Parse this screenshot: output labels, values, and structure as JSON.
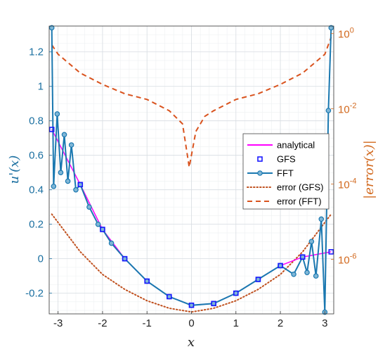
{
  "chart_data": {
    "type": "line",
    "xlabel": "x",
    "ylabel_left": "u'(x)",
    "ylabel_right": "|error(x)|",
    "xlim": [
      -3.2,
      3.2
    ],
    "ylim_left": [
      -0.32,
      1.35
    ],
    "ylim_right_log10": [
      -7.45,
      0.2
    ],
    "x_ticks": [
      -3,
      -2,
      -1,
      0,
      1,
      2,
      3
    ],
    "x_tick_labels": [
      "-3",
      "-2",
      "-1",
      "0",
      "1",
      "2",
      "3"
    ],
    "y_left_ticks": [
      -0.2,
      0,
      0.2,
      0.4,
      0.6,
      0.8,
      1,
      1.2
    ],
    "y_left_tick_labels": [
      "-0.2",
      "0",
      "0.2",
      "0.4",
      "0.6",
      "0.8",
      "1",
      "1.2"
    ],
    "y_right_ticks_log10": [
      -6,
      -4,
      -2,
      0
    ],
    "y_right_tick_labels": [
      "10",
      "10",
      "10",
      "10"
    ],
    "y_right_tick_exponents": [
      "-6",
      "-4",
      "-2",
      "0"
    ],
    "grid": true,
    "legend_position": "center-right",
    "series": [
      {
        "name": "analytical",
        "axis": "left",
        "color": "#ff00ff",
        "style": "solid-line",
        "x": [
          -3.1416,
          -2.5,
          -2.0,
          -1.5,
          -1.0,
          -0.5,
          0.0,
          0.5,
          1.0,
          1.5,
          2.0,
          2.5,
          3.1416
        ],
        "y": [
          0.75,
          0.43,
          0.17,
          0.0,
          -0.13,
          -0.22,
          -0.27,
          -0.26,
          -0.2,
          -0.12,
          -0.04,
          0.01,
          0.04
        ]
      },
      {
        "name": "GFS",
        "axis": "left",
        "color": "#1a1aff",
        "style": "square-markers",
        "x": [
          -3.1416,
          -2.5,
          -2.0,
          -1.5,
          -1.0,
          -0.5,
          0.0,
          0.5,
          1.0,
          1.5,
          2.0,
          2.5,
          3.1416
        ],
        "y": [
          0.75,
          0.43,
          0.17,
          0.0,
          -0.13,
          -0.22,
          -0.27,
          -0.26,
          -0.2,
          -0.12,
          -0.04,
          0.01,
          0.04
        ]
      },
      {
        "name": "FFT",
        "axis": "left",
        "color": "#1a78b0",
        "style": "line-circles",
        "x": [
          -3.1416,
          -3.1,
          -3.02,
          -2.94,
          -2.86,
          -2.78,
          -2.7,
          -2.6,
          -2.5,
          -2.3,
          -2.1,
          -2.0,
          -1.8,
          -1.5,
          -1.0,
          -0.5,
          0.0,
          0.5,
          1.0,
          1.5,
          2.0,
          2.3,
          2.5,
          2.6,
          2.7,
          2.8,
          2.92,
          3.0,
          3.08,
          3.1416
        ],
        "y": [
          1.34,
          0.42,
          0.84,
          0.5,
          0.72,
          0.45,
          0.66,
          0.4,
          0.43,
          0.3,
          0.2,
          0.17,
          0.09,
          0.0,
          -0.13,
          -0.22,
          -0.27,
          -0.26,
          -0.2,
          -0.12,
          -0.04,
          -0.09,
          0.01,
          -0.08,
          0.1,
          -0.1,
          0.23,
          -0.31,
          0.86,
          1.34
        ]
      },
      {
        "name": "error (GFS)",
        "axis": "right",
        "color": "#c0501e",
        "style": "dotted",
        "x": [
          -3.1416,
          -2.5,
          -2.0,
          -1.5,
          -1.0,
          -0.5,
          0.0,
          0.5,
          1.0,
          1.5,
          2.0,
          2.5,
          3.1416
        ],
        "log10_y": [
          -4.8,
          -5.8,
          -6.4,
          -6.8,
          -7.1,
          -7.3,
          -7.4,
          -7.3,
          -7.1,
          -6.8,
          -6.4,
          -5.8,
          -4.8
        ]
      },
      {
        "name": "error (FFT)",
        "axis": "right",
        "color": "#d9531e",
        "style": "dashed",
        "x": [
          -3.1416,
          -3.0,
          -2.5,
          -2.0,
          -1.5,
          -1.0,
          -0.5,
          -0.2,
          -0.05,
          0.1,
          0.3,
          0.5,
          1.0,
          1.5,
          2.0,
          2.5,
          3.0,
          3.1416
        ],
        "log10_y": [
          -0.3,
          -0.55,
          -1.05,
          -1.35,
          -1.6,
          -1.75,
          -2.05,
          -2.4,
          -3.55,
          -2.6,
          -2.2,
          -2.05,
          -1.75,
          -1.6,
          -1.35,
          -1.05,
          -0.55,
          -0.1
        ]
      }
    ]
  }
}
